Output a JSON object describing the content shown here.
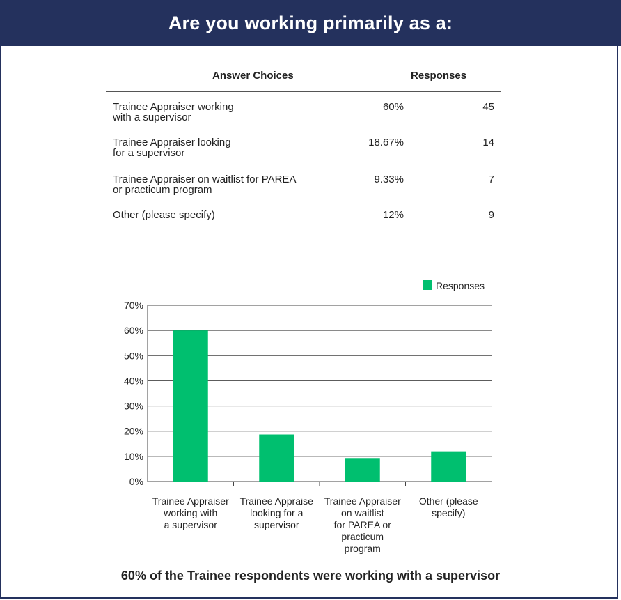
{
  "title": "Are you working primarily as a:",
  "table": {
    "headers": {
      "choices": "Answer Choices",
      "responses": "Responses"
    },
    "rows": [
      {
        "choice": [
          "Trainee Appraiser working",
          "with a supervisor"
        ],
        "percent": "60%",
        "count": "45"
      },
      {
        "choice": [
          "Trainee Appraiser looking",
          "for a supervisor"
        ],
        "percent": "18.67%",
        "count": "14"
      },
      {
        "choice": [
          "Trainee Appraiser on waitlist for PAREA",
          "or practicum program"
        ],
        "percent": "9.33%",
        "count": "7"
      },
      {
        "choice": [
          "Other (please specify)"
        ],
        "percent": "12%",
        "count": "9"
      }
    ]
  },
  "chart_data": {
    "type": "bar",
    "categories": [
      [
        "Trainee Appraiser",
        "working with",
        "a supervisor"
      ],
      [
        "Trainee Appraise",
        "looking for a",
        "supervisor"
      ],
      [
        "Trainee Appraiser",
        "on waitlist",
        "for PAREA or",
        "practicum",
        "program"
      ],
      [
        "Other (please",
        "specify)"
      ]
    ],
    "series": [
      {
        "name": "Responses",
        "values": [
          60,
          18.67,
          9.33,
          12
        ],
        "color": "#00bf6f"
      }
    ],
    "ylim": [
      0,
      70
    ],
    "yticks": [
      "0%",
      "10%",
      "20%",
      "30%",
      "40%",
      "50%",
      "60%",
      "70%"
    ],
    "grid": true,
    "legend": "top-right"
  },
  "caption": "60% of the Trainee respondents were working with a supervisor"
}
